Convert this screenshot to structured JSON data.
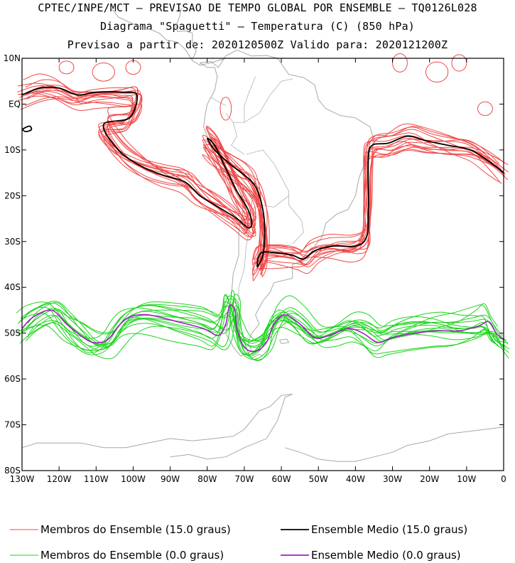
{
  "header": {
    "line1": "CPTEC/INPE/MCT – PREVISAO DE TEMPO GLOBAL POR ENSEMBLE – TQ0126L028",
    "line2": "Diagrama \"Spaguetti\" – Temperatura (C) (850 hPa)",
    "line3": "Previsao a partir de: 2020120500Z  Valido para: 2020121200Z"
  },
  "chart_data": {
    "type": "line",
    "title": "Diagrama \"Spaguetti\" – Temperatura (C) (850 hPa)",
    "x_axis": {
      "label": "",
      "range": [
        -130,
        0
      ],
      "ticks": [
        -130,
        -120,
        -110,
        -100,
        -90,
        -80,
        -70,
        -60,
        -50,
        -40,
        -30,
        -20,
        -10,
        0
      ],
      "tick_labels": [
        "130W",
        "120W",
        "110W",
        "100W",
        "90W",
        "80W",
        "70W",
        "60W",
        "50W",
        "40W",
        "30W",
        "20W",
        "10W",
        "0"
      ]
    },
    "y_axis": {
      "label": "",
      "range": [
        -80,
        10
      ],
      "ticks": [
        10,
        0,
        -10,
        -20,
        -30,
        -40,
        -50,
        -60,
        -70,
        -80
      ],
      "tick_labels": [
        "10N",
        "EQ",
        "10S",
        "20S",
        "30S",
        "40S",
        "50S",
        "60S",
        "70S",
        "80S"
      ]
    },
    "grid": false,
    "legend_position": "bottom",
    "colors": {
      "members_15": "#f04848",
      "mean_15": "#000000",
      "members_0": "#1ed41e",
      "mean_0": "#a020c0",
      "coast": "#a8a8a8"
    },
    "series": [
      {
        "name": "Ensemble Medio (15.0 graus)",
        "segments": [
          [
            [
              -130,
              2
            ],
            [
              -125,
              3.5
            ],
            [
              -120,
              3.5
            ],
            [
              -115,
              2
            ],
            [
              -110,
              2.6
            ],
            [
              -103,
              2.6
            ],
            [
              -99,
              2
            ],
            [
              -101,
              -3
            ],
            [
              -108,
              -4.5
            ],
            [
              -104,
              -10
            ],
            [
              -98,
              -13.5
            ],
            [
              -92,
              -15.5
            ],
            [
              -86,
              -17
            ],
            [
              -82,
              -20
            ],
            [
              -77,
              -22.5
            ],
            [
              -72,
              -25
            ],
            [
              -69,
              -27
            ],
            [
              -68,
              -26
            ],
            [
              -69,
              -23
            ],
            [
              -72,
              -19
            ],
            [
              -75,
              -14
            ],
            [
              -78,
              -9
            ],
            [
              -80,
              -7.5
            ],
            [
              -78,
              -10
            ],
            [
              -74,
              -13
            ],
            [
              -70,
              -15.5
            ],
            [
              -67,
              -18
            ],
            [
              -65,
              -23
            ],
            [
              -64.5,
              -28
            ],
            [
              -65,
              -33
            ],
            [
              -66.5,
              -35.5
            ],
            [
              -65.5,
              -32.5
            ],
            [
              -61,
              -32.5
            ],
            [
              -57,
              -33
            ],
            [
              -54,
              -33.8
            ],
            [
              -51,
              -32
            ],
            [
              -46,
              -31
            ],
            [
              -40,
              -31
            ],
            [
              -37,
              -29
            ],
            [
              -36.5,
              -23
            ],
            [
              -36.5,
              -12
            ],
            [
              -35.5,
              -9
            ],
            [
              -31,
              -8.5
            ],
            [
              -26,
              -7
            ],
            [
              -21,
              -8
            ],
            [
              -15,
              -9
            ],
            [
              -9,
              -10
            ],
            [
              -4,
              -12.5
            ],
            [
              0,
              -15
            ]
          ],
          [
            [
              -130,
              -5.5
            ],
            [
              -128,
              -4.8
            ],
            [
              -127.5,
              -5.6
            ],
            [
              -129,
              -6
            ],
            [
              -130,
              -5.5
            ]
          ]
        ]
      },
      {
        "name": "Ensemble Medio (0.0 graus)",
        "segments": [
          [
            [
              -130,
              -49
            ],
            [
              -127,
              -46.5
            ],
            [
              -122,
              -45
            ],
            [
              -118,
              -48
            ],
            [
              -115,
              -50
            ],
            [
              -111,
              -52
            ],
            [
              -107,
              -51.5
            ],
            [
              -104,
              -48.5
            ],
            [
              -101,
              -46.5
            ],
            [
              -96,
              -46
            ],
            [
              -88,
              -47.5
            ],
            [
              -81,
              -49
            ],
            [
              -77,
              -50.5
            ],
            [
              -75,
              -48
            ],
            [
              -74,
              -44
            ],
            [
              -72.5,
              -45
            ],
            [
              -72,
              -49
            ],
            [
              -70,
              -53
            ],
            [
              -67,
              -54
            ],
            [
              -64,
              -52
            ],
            [
              -62,
              -48
            ],
            [
              -59,
              -46
            ],
            [
              -55,
              -48
            ],
            [
              -51,
              -51
            ],
            [
              -47,
              -50.5
            ],
            [
              -42,
              -49
            ],
            [
              -38,
              -50
            ],
            [
              -34,
              -52
            ],
            [
              -30,
              -51
            ],
            [
              -24,
              -50
            ],
            [
              -18,
              -49.5
            ],
            [
              -12,
              -49.5
            ],
            [
              -7,
              -48.5
            ],
            [
              -4,
              -47.5
            ],
            [
              -2,
              -50
            ],
            [
              0,
              -51.5
            ]
          ]
        ]
      },
      {
        "name": "Membros do Ensemble (15.0 graus)",
        "member_count": 15
      },
      {
        "name": "Membros do Ensemble (0.0 graus)",
        "member_count": 15
      }
    ],
    "legend": [
      {
        "label": "Membros do Ensemble (15.0 graus)",
        "color": "#f04848"
      },
      {
        "label": "Ensemble Medio (15.0 graus)",
        "color": "#000000"
      },
      {
        "label": "Membros do Ensemble (0.0 graus)",
        "color": "#1ed41e"
      },
      {
        "label": "Ensemble Medio (0.0 graus)",
        "color": "#a020c0"
      }
    ]
  }
}
